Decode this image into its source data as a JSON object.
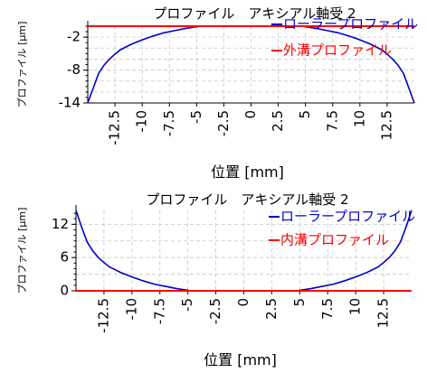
{
  "chart_data": [
    {
      "type": "line",
      "title": "プロファイル　アキシアル軸受 2",
      "xlabel": "位置 [mm]",
      "ylabel": "プロファイル [μm]",
      "xlim": [
        -15,
        15
      ],
      "ylim": [
        -14,
        0
      ],
      "xticks": [
        -12.5,
        -10,
        -7.5,
        -5,
        -2.5,
        0,
        2.5,
        5,
        7.5,
        10,
        12.5
      ],
      "yticks": [
        -2,
        -8,
        -14
      ],
      "grid": true,
      "legend_position": "top-right",
      "series": [
        {
          "name": "ローラープロファイル",
          "color": "#0000cc",
          "x": [
            -15,
            -14.5,
            -14,
            -13.5,
            -13,
            -12.5,
            -12,
            -11,
            -10,
            -9,
            -8,
            -7,
            -6,
            -5,
            -4.8,
            4.8,
            5,
            6,
            7,
            8,
            9,
            10,
            11,
            12,
            12.5,
            13,
            13.5,
            14,
            14.5,
            15
          ],
          "y": [
            -14,
            -11.3,
            -8.6,
            -7.1,
            -6.0,
            -5.1,
            -4.3,
            -3.3,
            -2.5,
            -1.8,
            -1.2,
            -0.8,
            -0.4,
            -0.1,
            0,
            0,
            -0.1,
            -0.4,
            -0.8,
            -1.2,
            -1.8,
            -2.5,
            -3.3,
            -4.3,
            -5.1,
            -6.0,
            -7.1,
            -8.6,
            -11.3,
            -14
          ]
        },
        {
          "name": "外溝プロファイル",
          "color": "#ff0000",
          "x": [
            -15,
            15
          ],
          "y": [
            0,
            0
          ]
        }
      ]
    },
    {
      "type": "line",
      "title": "プロファイル　アキシアル軸受 2",
      "xlabel": "位置 [mm]",
      "ylabel": "プロファイル [μm]",
      "xlim": [
        -15,
        15
      ],
      "ylim": [
        0,
        14.5
      ],
      "xticks": [
        -12.5,
        -10,
        -7.5,
        -5,
        -2.5,
        0,
        2.5,
        5,
        7.5,
        10,
        12.5
      ],
      "yticks": [
        0,
        6,
        12
      ],
      "grid": true,
      "legend_position": "top-right",
      "series": [
        {
          "name": "ローラープロファイル",
          "color": "#0000cc",
          "x": [
            -15,
            -14.5,
            -14,
            -13.5,
            -13,
            -12.5,
            -12,
            -11,
            -10,
            -9,
            -8,
            -7,
            -6,
            -5,
            -4.8,
            4.8,
            5,
            6,
            7,
            8,
            9,
            10,
            11,
            12,
            12.5,
            13,
            13.5,
            14,
            14.5,
            15
          ],
          "y": [
            14.5,
            11.5,
            8.8,
            7.2,
            6.0,
            5.1,
            4.3,
            3.3,
            2.5,
            1.8,
            1.2,
            0.8,
            0.4,
            0.1,
            0,
            0,
            0.1,
            0.4,
            0.8,
            1.2,
            1.8,
            2.5,
            3.3,
            4.3,
            5.1,
            6.0,
            7.2,
            8.8,
            11.5,
            14.5
          ]
        },
        {
          "name": "内溝プロファイル",
          "color": "#ff0000",
          "x": [
            -15,
            15
          ],
          "y": [
            0,
            0
          ]
        }
      ]
    }
  ]
}
